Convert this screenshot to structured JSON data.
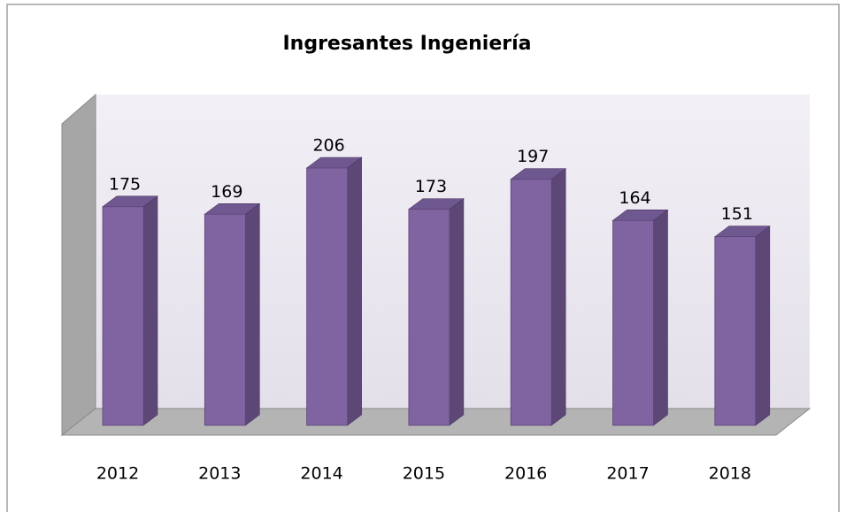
{
  "chart_data": {
    "type": "bar",
    "title": "Ingresantes Ingeniería",
    "categories": [
      "2012",
      "2013",
      "2014",
      "2015",
      "2016",
      "2017",
      "2018"
    ],
    "values": [
      175,
      169,
      206,
      173,
      197,
      164,
      151
    ],
    "color": "#8064a2"
  }
}
